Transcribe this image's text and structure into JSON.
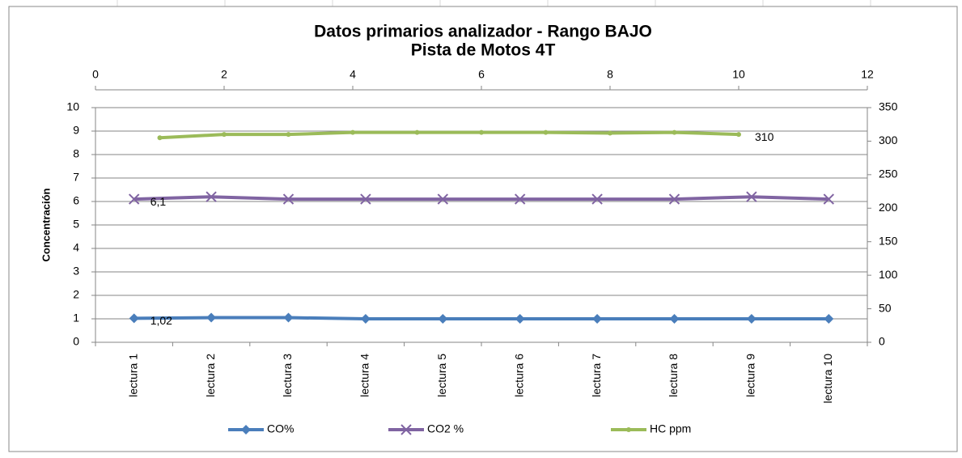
{
  "chart_data": {
    "type": "line",
    "title": "Datos primarios analizador - Rango BAJO",
    "subtitle": "Pista de Motos 4T",
    "y_label": "Concentración",
    "categories": [
      "lectura 1",
      "lectura 2",
      "lectura 3",
      "lectura 4",
      "lectura 5",
      "lectura 6",
      "lectura 7",
      "lectura 8",
      "lectura 9",
      "lectura 10"
    ],
    "ylim": [
      0,
      10
    ],
    "yticks": [
      0,
      1,
      2,
      3,
      4,
      5,
      6,
      7,
      8,
      9,
      10
    ],
    "y2lim": [
      0,
      350
    ],
    "y2ticks": [
      0,
      50,
      100,
      150,
      200,
      250,
      300,
      350
    ],
    "x2lim": [
      0,
      12
    ],
    "x2ticks": [
      0,
      2,
      4,
      6,
      8,
      10,
      12
    ],
    "grid": true,
    "legend": "bottom",
    "series": [
      {
        "name": "CO%",
        "color": "#4a7ebb",
        "marker": "diamond",
        "values": [
          1.02,
          1.05,
          1.05,
          1.0,
          1.0,
          1.0,
          1.0,
          1.0,
          1.0,
          1.0
        ],
        "value_labels": [
          "1,02",
          null,
          null,
          null,
          null,
          null,
          null,
          null,
          null,
          null
        ]
      },
      {
        "name": "CO2 %",
        "color": "#8064a2",
        "marker": "x",
        "values": [
          6.1,
          6.2,
          6.1,
          6.1,
          6.1,
          6.1,
          6.1,
          6.1,
          6.2,
          6.1
        ],
        "value_labels": [
          "6,1",
          null,
          null,
          null,
          null,
          null,
          null,
          null,
          null,
          null
        ]
      },
      {
        "name": "HC ppm",
        "color": "#9bbb59",
        "marker": "circle",
        "axis": "y2",
        "x": [
          1,
          2,
          3,
          4,
          5,
          6,
          7,
          8,
          9,
          10
        ],
        "values": [
          305,
          310,
          310,
          313,
          313,
          313,
          313,
          312,
          313,
          310
        ],
        "value_labels": [
          null,
          null,
          null,
          null,
          null,
          null,
          null,
          null,
          null,
          "310"
        ]
      }
    ]
  }
}
